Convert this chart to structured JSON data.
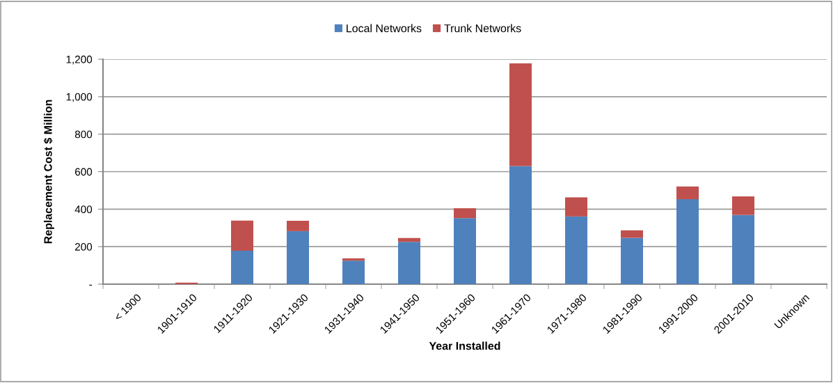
{
  "chart_data": {
    "type": "bar",
    "stacked": true,
    "xlabel": "Year Installed",
    "ylabel": "Replacement Cost $ Million",
    "categories": [
      "< 1900",
      "1901-1910",
      "1911-1920",
      "1921-1930",
      "1931-1940",
      "1941-1950",
      "1951-1960",
      "1961-1970",
      "1971-1980",
      "1981-1990",
      "1991-2000",
      "2001-2010",
      "Unknown"
    ],
    "series": [
      {
        "name": "Local Networks",
        "color": "#4f81bd",
        "values": [
          0,
          0,
          178,
          283,
          125,
          226,
          352,
          630,
          361,
          247,
          453,
          369,
          0
        ]
      },
      {
        "name": "Trunk Networks",
        "color": "#c0504d",
        "values": [
          0,
          8,
          161,
          55,
          12,
          20,
          53,
          548,
          102,
          40,
          68,
          99,
          0
        ]
      }
    ],
    "ylim": [
      0,
      1200
    ],
    "yticks": [
      {
        "value": 0,
        "label": "-"
      },
      200,
      400,
      600,
      800,
      {
        "value": 1000,
        "label": "1,000"
      },
      {
        "value": 1200,
        "label": "1,200"
      }
    ],
    "grid": "y",
    "legend": "top"
  }
}
